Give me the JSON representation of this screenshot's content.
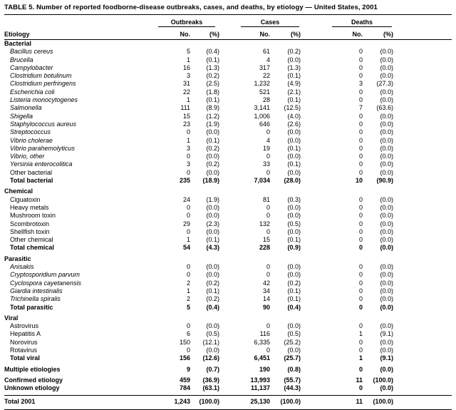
{
  "title": "TABLE 5. Number of reported foodborne-disease outbreaks, cases, and deaths, by etiology — United States, 2001",
  "header": {
    "etiology": "Etiology",
    "groups": [
      {
        "label": "Outbreaks"
      },
      {
        "label": "Cases"
      },
      {
        "label": "Deaths"
      }
    ],
    "subcols": [
      "No.",
      "(%)",
      "No.",
      "(%)",
      "No.",
      "(%)"
    ]
  },
  "sections": [
    {
      "header": "Bacterial",
      "rows": [
        {
          "name": "Bacillus cereus",
          "italic": true,
          "values": [
            "5",
            "(0.4)",
            "61",
            "(0.2)",
            "0",
            "(0.0)"
          ]
        },
        {
          "name": "Brucella",
          "italic": true,
          "values": [
            "1",
            "(0.1)",
            "4",
            "(0.0)",
            "0",
            "(0.0)"
          ]
        },
        {
          "name": "Campylobacter",
          "italic": true,
          "values": [
            "16",
            "(1.3)",
            "317",
            "(1.3)",
            "0",
            "(0.0)"
          ]
        },
        {
          "name": "Clostridium botulinum",
          "italic": true,
          "values": [
            "3",
            "(0.2)",
            "22",
            "(0.1)",
            "0",
            "(0.0)"
          ]
        },
        {
          "name": "Clostridium perfringens",
          "italic": true,
          "values": [
            "31",
            "(2.5)",
            "1,232",
            "(4.9)",
            "3",
            "(27.3)"
          ]
        },
        {
          "name": "Escherichia coli",
          "italic": true,
          "values": [
            "22",
            "(1.8)",
            "521",
            "(2.1)",
            "0",
            "(0.0)"
          ]
        },
        {
          "name": "Listeria monocytogenes",
          "italic": true,
          "values": [
            "1",
            "(0.1)",
            "28",
            "(0.1)",
            "0",
            "(0.0)"
          ]
        },
        {
          "name": "Salmonella",
          "italic": true,
          "values": [
            "111",
            "(8.9)",
            "3,141",
            "(12.5)",
            "7",
            "(63.6)"
          ]
        },
        {
          "name": "Shigella",
          "italic": true,
          "values": [
            "15",
            "(1.2)",
            "1,006",
            "(4.0)",
            "0",
            "(0.0)"
          ]
        },
        {
          "name": "Staphylococcus aureus",
          "italic": true,
          "values": [
            "23",
            "(1.9)",
            "646",
            "(2.6)",
            "0",
            "(0.0)"
          ]
        },
        {
          "name": "Streptococcus",
          "italic": true,
          "values": [
            "0",
            "(0.0)",
            "0",
            "(0.0)",
            "0",
            "(0.0)"
          ]
        },
        {
          "name": "Vibrio cholerae",
          "italic": true,
          "values": [
            "1",
            "(0.1)",
            "4",
            "(0.0)",
            "0",
            "(0.0)"
          ]
        },
        {
          "name": "Vibrio parahemolyticus",
          "italic": true,
          "values": [
            "3",
            "(0.2)",
            "19",
            "(0.1)",
            "0",
            "(0.0)"
          ]
        },
        {
          "name": "Vibrio, other",
          "italic": true,
          "values": [
            "0",
            "(0.0)",
            "0",
            "(0.0)",
            "0",
            "(0.0)"
          ]
        },
        {
          "name": "Yersinia enterocolitica",
          "italic": true,
          "values": [
            "3",
            "(0.2)",
            "33",
            "(0.1)",
            "0",
            "(0.0)"
          ]
        },
        {
          "name": "Other bacterial",
          "italic": false,
          "values": [
            "0",
            "(0.0)",
            "0",
            "(0.0)",
            "0",
            "(0.0)"
          ]
        },
        {
          "name": "Total bacterial",
          "bold": true,
          "values": [
            "235",
            "(18.9)",
            "7,034",
            "(28.0)",
            "10",
            "(90.9)"
          ]
        }
      ]
    },
    {
      "header": "Chemical",
      "rows": [
        {
          "name": "Ciguatoxin",
          "values": [
            "24",
            "(1.9)",
            "81",
            "(0.3)",
            "0",
            "(0.0)"
          ]
        },
        {
          "name": "Heavy metals",
          "values": [
            "0",
            "(0.0)",
            "0",
            "(0.0)",
            "0",
            "(0.0)"
          ]
        },
        {
          "name": "Mushroom toxin",
          "values": [
            "0",
            "(0.0)",
            "0",
            "(0.0)",
            "0",
            "(0.0)"
          ]
        },
        {
          "name": "Scombrotoxin",
          "values": [
            "29",
            "(2.3)",
            "132",
            "(0.5)",
            "0",
            "(0.0)"
          ]
        },
        {
          "name": "Shellfish toxin",
          "values": [
            "0",
            "(0.0)",
            "0",
            "(0.0)",
            "0",
            "(0.0)"
          ]
        },
        {
          "name": "Other chemical",
          "values": [
            "1",
            "(0.1)",
            "15",
            "(0.1)",
            "0",
            "(0.0)"
          ]
        },
        {
          "name": "Total chemical",
          "bold": true,
          "values": [
            "54",
            "(4.3)",
            "228",
            "(0.9)",
            "0",
            "(0.0)"
          ]
        }
      ]
    },
    {
      "header": "Parasitic",
      "rows": [
        {
          "name": "Anisakis",
          "italic": true,
          "values": [
            "0",
            "(0.0)",
            "0",
            "(0.0)",
            "0",
            "(0.0)"
          ]
        },
        {
          "name": "Cryptosporidium parvum",
          "italic": true,
          "values": [
            "0",
            "(0.0)",
            "0",
            "(0.0)",
            "0",
            "(0.0)"
          ]
        },
        {
          "name": "Cyclospora cayetanensis",
          "italic": true,
          "values": [
            "2",
            "(0.2)",
            "42",
            "(0.2)",
            "0",
            "(0.0)"
          ]
        },
        {
          "name": "Giardia intestinalis",
          "italic": true,
          "values": [
            "1",
            "(0.1)",
            "34",
            "(0.1)",
            "0",
            "(0.0)"
          ]
        },
        {
          "name": "Trichinella spiralis",
          "italic": true,
          "values": [
            "2",
            "(0.2)",
            "14",
            "(0.1)",
            "0",
            "(0.0)"
          ]
        },
        {
          "name": "Total parasitic",
          "bold": true,
          "values": [
            "5",
            "(0.4)",
            "90",
            "(0.4)",
            "0",
            "(0.0)"
          ]
        }
      ]
    },
    {
      "header": "Viral",
      "rows": [
        {
          "name": "Astrovirus",
          "values": [
            "0",
            "(0.0)",
            "0",
            "(0.0)",
            "0",
            "(0.0)"
          ]
        },
        {
          "name": "Hepatitis A",
          "values": [
            "6",
            "(0.5)",
            "116",
            "(0.5)",
            "1",
            "(9.1)"
          ]
        },
        {
          "name": "Norovirus",
          "values": [
            "150",
            "(12.1)",
            "6,335",
            "(25.2)",
            "0",
            "(0.0)"
          ]
        },
        {
          "name": "Rotavirus",
          "values": [
            "0",
            "(0.0)",
            "0",
            "(0.0)",
            "0",
            "(0.0)"
          ]
        },
        {
          "name": "Total viral",
          "bold": true,
          "values": [
            "156",
            "(12.6)",
            "6,451",
            "(25.7)",
            "1",
            "(9.1)"
          ]
        }
      ]
    }
  ],
  "summary_rows": [
    {
      "name": "Multiple etiologies",
      "bold": true,
      "gap_before": false,
      "values": [
        "9",
        "(0.7)",
        "190",
        "(0.8)",
        "0",
        "(0.0)"
      ]
    },
    {
      "name": "Confirmed etiology",
      "bold": true,
      "gap_before": true,
      "values": [
        "459",
        "(36.9)",
        "13,993",
        "(55.7)",
        "11",
        "(100.0)"
      ]
    },
    {
      "name": "Unknown etiology",
      "bold": true,
      "gap_before": false,
      "values": [
        "784",
        "(63.1)",
        "11,137",
        "(44.3)",
        "0",
        "(0.0)"
      ]
    }
  ],
  "total_row": {
    "name": "Total 2001",
    "bold": true,
    "values": [
      "1,243",
      "(100.0)",
      "25,130",
      "(100.0)",
      "11",
      "(100.0)"
    ]
  }
}
